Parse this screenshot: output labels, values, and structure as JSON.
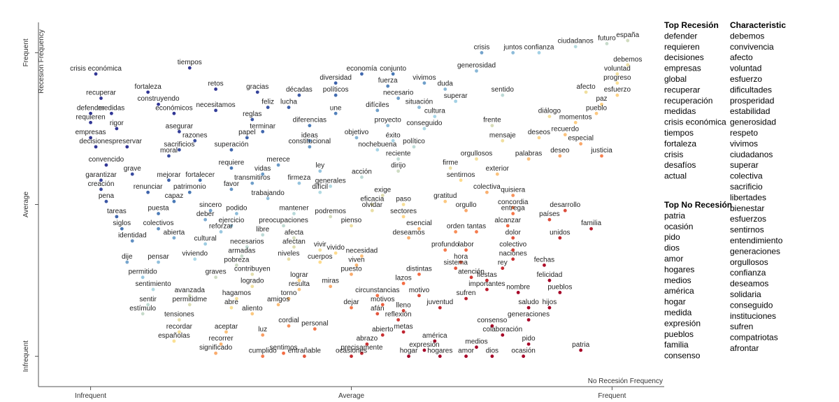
{
  "chart_data": {
    "type": "scatter",
    "x_label": "No Recesión Frequency",
    "y_label": "Recesión Frequency",
    "xlim": [
      -0.1,
      1.1
    ],
    "ylim": [
      -0.1,
      1.1
    ],
    "xticks": [
      {
        "value": 0,
        "label": "Infrequent"
      },
      {
        "value": 0.5,
        "label": "Average"
      },
      {
        "value": 1,
        "label": "Frequent"
      }
    ],
    "yticks": [
      {
        "value": 0,
        "label": "Infrequent"
      },
      {
        "value": 0.5,
        "label": "Average"
      },
      {
        "value": 1,
        "label": "Frequent"
      }
    ],
    "labels": [
      "crisis económica",
      "fortaleza",
      "tiempos",
      "recuperar",
      "construyendo",
      "medidas",
      "defender",
      "económicos",
      "requieren",
      "rigor",
      "empresas",
      "decisiones",
      "asegurar",
      "preservar",
      "razones",
      "sacrificios",
      "moral",
      "convencido",
      "grave",
      "garantizar",
      "mejorar",
      "creación",
      "renunciar",
      "fortalecer",
      "patrimonio",
      "capaz",
      "favor",
      "pena",
      "tareas",
      "puesta",
      "siglos",
      "colectivos",
      "identidad",
      "abierta",
      "sincero",
      "deber",
      "podido",
      "ejercicio",
      "reforzar",
      "cultural",
      "dije",
      "pensar",
      "viviendo",
      "permitido",
      "sentimiento",
      "avanzada",
      "sentir",
      "permitidme",
      "estímulo",
      "tensiones",
      "recordar",
      "españolas",
      "recorrer",
      "significado",
      "retos",
      "gracias",
      "décadas",
      "necesitamos",
      "feliz",
      "lucha",
      "reglas",
      "terminar",
      "papel",
      "diferencias",
      "superación",
      "ideas",
      "constitucional",
      "requiere",
      "merece",
      "vidas",
      "transmitiros",
      "ley",
      "firmeza",
      "generales",
      "difícil",
      "trabajando",
      "mantener",
      "podremos",
      "preocupaciones",
      "libre",
      "afecta",
      "necesarios",
      "afectan",
      "armadas",
      "vivir",
      "vivido",
      "niveles",
      "pobreza",
      "contribuyen",
      "cuerpos",
      "graves",
      "lograr",
      "logrado",
      "resulta",
      "miras",
      "hagamos",
      "torno",
      "abre",
      "amigos",
      "aliento",
      "cordial",
      "personal",
      "aceptar",
      "luz",
      "sentimos",
      "cumplido",
      "entrañable",
      "economía",
      "conjunto",
      "diversidad",
      "fuerza",
      "políticos",
      "necesario",
      "une",
      "difíciles",
      "proyecto",
      "objetivo",
      "éxito",
      "nochebuena",
      "reciente",
      "dirijo",
      "acción",
      "exige",
      "eficacia",
      "paso",
      "olvidar",
      "sectores",
      "pienso",
      "esencial",
      "deseamos",
      "necesidad",
      "viven",
      "puesto",
      "circunstancias",
      "lazos",
      "motivo",
      "motivos",
      "dejar",
      "afán",
      "lleno",
      "reflexión",
      "abierto",
      "metas",
      "abrazo",
      "precisamente",
      "ocasiones",
      "vivimos",
      "duda",
      "superar",
      "situación",
      "cultura",
      "conseguido",
      "político",
      "firme",
      "sentirnos",
      "gratitud",
      "orgullo",
      "orden",
      "tantas",
      "profundo",
      "labor",
      "hora",
      "sistema",
      "distintas",
      "atención",
      "juventud",
      "sufren",
      "importantes",
      "américa",
      "expresión",
      "hogar",
      "hogares",
      "amor",
      "medios",
      "consenso",
      "colaboración",
      "dios",
      "crisis",
      "juntos",
      "confianza",
      "ciudadanos",
      "futuro",
      "españa",
      "generosidad",
      "debemos",
      "voluntad",
      "progreso",
      "sentido",
      "afecto",
      "esfuerzo",
      "paz",
      "pueblo",
      "diálogo",
      "momentos",
      "frente",
      "recuerdo",
      "deseos",
      "mensaje",
      "especial",
      "orgullosos",
      "palabras",
      "deseo",
      "justicia",
      "exterior",
      "colectiva",
      "quisiera",
      "concordia",
      "entrega",
      "alcanzar",
      "desarrollo",
      "países",
      "familia",
      "unidos",
      "dolor",
      "colectivo",
      "naciones",
      "fechas",
      "rey",
      "fiestas",
      "felicidad",
      "nombre",
      "pueblos",
      "hijos",
      "saludo",
      "generaciones",
      "pido",
      "ocasión",
      "patria"
    ],
    "x": [
      0.01,
      0.11,
      0.19,
      0.02,
      0.13,
      0.04,
      0.0,
      0.16,
      0.0,
      0.05,
      0.0,
      0.01,
      0.17,
      0.07,
      0.2,
      0.17,
      0.15,
      0.03,
      0.08,
      0.02,
      0.15,
      0.02,
      0.11,
      0.21,
      0.19,
      0.16,
      0.27,
      0.03,
      0.05,
      0.13,
      0.06,
      0.13,
      0.08,
      0.16,
      0.23,
      0.22,
      0.28,
      0.27,
      0.25,
      0.22,
      0.07,
      0.13,
      0.2,
      0.1,
      0.12,
      0.19,
      0.11,
      0.19,
      0.1,
      0.17,
      0.17,
      0.16,
      0.25,
      0.24,
      0.24,
      0.32,
      0.4,
      0.24,
      0.34,
      0.38,
      0.31,
      0.33,
      0.3,
      0.42,
      0.27,
      0.42,
      0.42,
      0.27,
      0.36,
      0.33,
      0.31,
      0.44,
      0.4,
      0.46,
      0.44,
      0.34,
      0.39,
      0.46,
      0.37,
      0.33,
      0.39,
      0.3,
      0.39,
      0.29,
      0.44,
      0.47,
      0.38,
      0.28,
      0.31,
      0.44,
      0.24,
      0.4,
      0.31,
      0.4,
      0.46,
      0.28,
      0.38,
      0.27,
      0.36,
      0.31,
      0.38,
      0.43,
      0.26,
      0.33,
      0.37,
      0.33,
      0.41,
      0.52,
      0.58,
      0.47,
      0.57,
      0.47,
      0.59,
      0.47,
      0.55,
      0.57,
      0.51,
      0.58,
      0.55,
      0.59,
      0.59,
      0.52,
      0.56,
      0.54,
      0.6,
      0.54,
      0.6,
      0.5,
      0.63,
      0.61,
      0.52,
      0.51,
      0.5,
      0.55,
      0.6,
      0.63,
      0.56,
      0.5,
      0.55,
      0.6,
      0.59,
      0.56,
      0.6,
      0.53,
      0.52,
      0.5,
      0.64,
      0.68,
      0.7,
      0.63,
      0.66,
      0.64,
      0.62,
      0.69,
      0.71,
      0.68,
      0.72,
      0.7,
      0.74,
      0.68,
      0.72,
      0.71,
      0.7,
      0.63,
      0.73,
      0.67,
      0.72,
      0.76,
      0.66,
      0.64,
      0.61,
      0.67,
      0.72,
      0.74,
      0.77,
      0.79,
      0.77,
      0.75,
      0.81,
      0.86,
      0.93,
      0.99,
      1.03,
      0.74,
      1.03,
      1.01,
      1.01,
      0.79,
      0.95,
      1.01,
      0.98,
      0.97,
      0.88,
      0.93,
      0.77,
      0.91,
      0.86,
      0.79,
      0.94,
      0.74,
      0.84,
      0.9,
      0.98,
      0.78,
      0.76,
      0.81,
      0.81,
      0.81,
      0.8,
      0.91,
      0.88,
      0.96,
      0.9,
      0.81,
      0.81,
      0.81,
      0.87,
      0.79,
      0.76,
      0.88,
      0.82,
      0.9,
      0.88,
      0.84,
      0.84,
      0.84,
      0.83,
      0.94
    ],
    "y": [
      0.93,
      0.87,
      0.95,
      0.85,
      0.83,
      0.8,
      0.8,
      0.8,
      0.77,
      0.75,
      0.72,
      0.69,
      0.74,
      0.69,
      0.71,
      0.68,
      0.66,
      0.63,
      0.6,
      0.58,
      0.58,
      0.55,
      0.54,
      0.58,
      0.54,
      0.51,
      0.55,
      0.51,
      0.46,
      0.47,
      0.42,
      0.42,
      0.38,
      0.39,
      0.48,
      0.45,
      0.47,
      0.43,
      0.41,
      0.37,
      0.31,
      0.31,
      0.32,
      0.26,
      0.22,
      0.2,
      0.17,
      0.17,
      0.14,
      0.12,
      0.08,
      0.05,
      0.04,
      0.01,
      0.88,
      0.87,
      0.86,
      0.81,
      0.82,
      0.82,
      0.78,
      0.74,
      0.72,
      0.76,
      0.68,
      0.71,
      0.69,
      0.62,
      0.63,
      0.6,
      0.57,
      0.61,
      0.57,
      0.56,
      0.54,
      0.52,
      0.47,
      0.46,
      0.43,
      0.4,
      0.39,
      0.36,
      0.36,
      0.33,
      0.35,
      0.34,
      0.32,
      0.3,
      0.27,
      0.31,
      0.26,
      0.25,
      0.23,
      0.22,
      0.23,
      0.19,
      0.19,
      0.16,
      0.17,
      0.14,
      0.1,
      0.09,
      0.08,
      0.07,
      0.01,
      0.0,
      0.0,
      0.93,
      0.93,
      0.9,
      0.89,
      0.86,
      0.85,
      0.8,
      0.81,
      0.76,
      0.72,
      0.71,
      0.68,
      0.65,
      0.61,
      0.59,
      0.53,
      0.5,
      0.5,
      0.48,
      0.46,
      0.43,
      0.42,
      0.39,
      0.33,
      0.3,
      0.27,
      0.2,
      0.24,
      0.2,
      0.17,
      0.16,
      0.14,
      0.15,
      0.12,
      0.07,
      0.08,
      0.04,
      0.01,
      0.0,
      0.9,
      0.88,
      0.84,
      0.82,
      0.79,
      0.75,
      0.69,
      0.62,
      0.58,
      0.51,
      0.48,
      0.41,
      0.41,
      0.35,
      0.35,
      0.31,
      0.29,
      0.27,
      0.26,
      0.16,
      0.19,
      0.22,
      0.05,
      0.02,
      0.0,
      0.0,
      0.0,
      0.03,
      0.1,
      0.07,
      0.0,
      1.0,
      1.0,
      1.0,
      1.02,
      1.03,
      1.04,
      0.94,
      0.96,
      0.93,
      0.9,
      0.86,
      0.87,
      0.86,
      0.83,
      0.8,
      0.79,
      0.77,
      0.76,
      0.73,
      0.72,
      0.71,
      0.7,
      0.65,
      0.65,
      0.66,
      0.66,
      0.6,
      0.54,
      0.53,
      0.49,
      0.47,
      0.43,
      0.48,
      0.45,
      0.42,
      0.39,
      0.39,
      0.35,
      0.32,
      0.3,
      0.29,
      0.25,
      0.25,
      0.21,
      0.21,
      0.16,
      0.16,
      0.12,
      0.04,
      0.0,
      0.02
    ]
  },
  "term_lists": [
    {
      "title": "Top Recesión",
      "terms": [
        "defender",
        "requieren",
        "decisiones",
        "empresas",
        "global",
        "recuperar",
        "recuperación",
        "medidas",
        "crisis económica",
        "tiempos",
        "fortaleza",
        "crisis",
        "desafíos",
        "actual"
      ]
    },
    {
      "title": "Top No Recesión",
      "terms": [
        "patria",
        "ocasión",
        "pido",
        "dios",
        "amor",
        "hogares",
        "medios",
        "américa",
        "hogar",
        "medida",
        "expresión",
        "pueblos",
        "familia",
        "consenso"
      ]
    },
    {
      "title": "Characteristic",
      "terms": [
        "debemos",
        "convivencia",
        "afecto",
        "voluntad",
        "esfuerzo",
        "dificultades",
        "prosperidad",
        "estabilidad",
        "generosidad",
        "respeto",
        "vivimos",
        "ciudadanos",
        "superar",
        "colectiva",
        "sacrificio",
        "libertades",
        "bienestar",
        "esfuerzos",
        "sentirnos",
        "entendimiento",
        "generaciones",
        "orgullosos",
        "confianza",
        "deseamos",
        "solidaria",
        "conseguido",
        "instituciones",
        "sufren",
        "compatriotas",
        "afrontar"
      ]
    }
  ]
}
